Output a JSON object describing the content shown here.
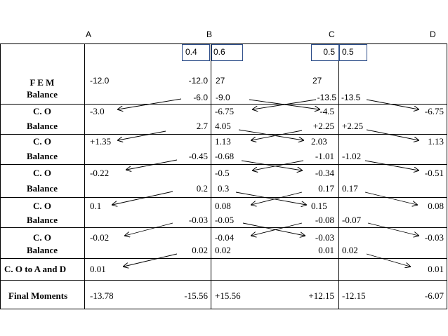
{
  "joints": [
    "A",
    "B",
    "C",
    "D"
  ],
  "df": {
    "b_left": "0.4",
    "b_right": "0.6",
    "c_left": "0.5",
    "c_right": "0.5"
  },
  "row_labels": {
    "fem": "F E M",
    "balance": "Balance",
    "co": "C. O",
    "co_final": "C. O to A and D",
    "final": "Final Moments"
  },
  "fem": {
    "ab": "-12.0",
    "ba": "-12.0",
    "bc": "27",
    "cb": "27"
  },
  "balance0": {
    "ba": "-6.0",
    "bc": "-9.0",
    "cb": "-13.5",
    "cd": "-13.5"
  },
  "co1": {
    "ab": "-3.0",
    "bc": "-6.75",
    "cb": "-4.5",
    "dc": "-6.75"
  },
  "bal1": {
    "ba": "2.7",
    "bc": "4.05",
    "cb": "+2.25",
    "cd": "+2.25"
  },
  "co2": {
    "ab": "+1.35",
    "bc": "1.13",
    "cb": "2.03",
    "dc": "1.13"
  },
  "bal2": {
    "ba": "-0.45",
    "bc": "-0.68",
    "cb": "-1.01",
    "cd": "-1.02"
  },
  "co3": {
    "ab": "-0.22",
    "bc": "-0.5",
    "cb": "-0.34",
    "dc": "-0.51"
  },
  "bal3": {
    "ba": "0.2",
    "bc": "0.3",
    "cb": "0.17",
    "cd": "0.17"
  },
  "co4": {
    "ab": "0.1",
    "bc": "0.08",
    "cb": "0.15",
    "dc": "0.08"
  },
  "bal4": {
    "ba": "-0.03",
    "bc": "-0.05",
    "cb": "-0.08",
    "cd": "-0.07"
  },
  "co5": {
    "ab": "-0.02",
    "bc": "-0.04",
    "cb": "-0.03",
    "dc": "-0.03"
  },
  "bal5": {
    "ba": "0.02",
    "bc": "0.02",
    "cb": "0.01",
    "cd": "0.02"
  },
  "co_final": {
    "ab": "0.01",
    "dc": "0.01"
  },
  "final": {
    "ab": "-13.78",
    "ba": "-15.56",
    "bc": "+15.56",
    "cb": "+12.15",
    "cd": "-12.15",
    "dc": "-6.07"
  }
}
